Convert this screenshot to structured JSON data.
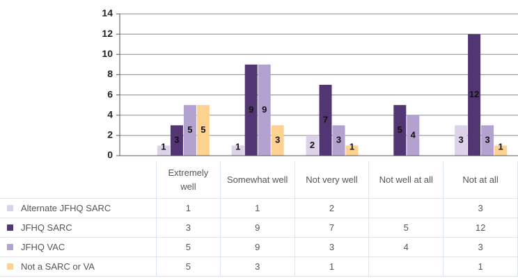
{
  "chart_data": {
    "type": "bar",
    "categories": [
      "Extremely well",
      "Somewhat well",
      "Not very well",
      "Not well at all",
      "Not at all"
    ],
    "series": [
      {
        "name": "Alternate JFHQ SARC",
        "color": "#dcd3ea",
        "values": [
          1,
          1,
          2,
          null,
          3
        ]
      },
      {
        "name": "JFHQ SARC",
        "color": "#523573",
        "values": [
          3,
          9,
          7,
          5,
          12
        ]
      },
      {
        "name": "JFHQ VAC",
        "color": "#b3a2d0",
        "values": [
          5,
          9,
          3,
          4,
          3
        ]
      },
      {
        "name": "Not a SARC or VA",
        "color": "#fdd18f",
        "values": [
          5,
          3,
          1,
          null,
          1
        ]
      }
    ],
    "ylim": [
      0,
      14
    ],
    "yticks": [
      0,
      2,
      4,
      6,
      8,
      10,
      12,
      14
    ],
    "grid": true
  }
}
